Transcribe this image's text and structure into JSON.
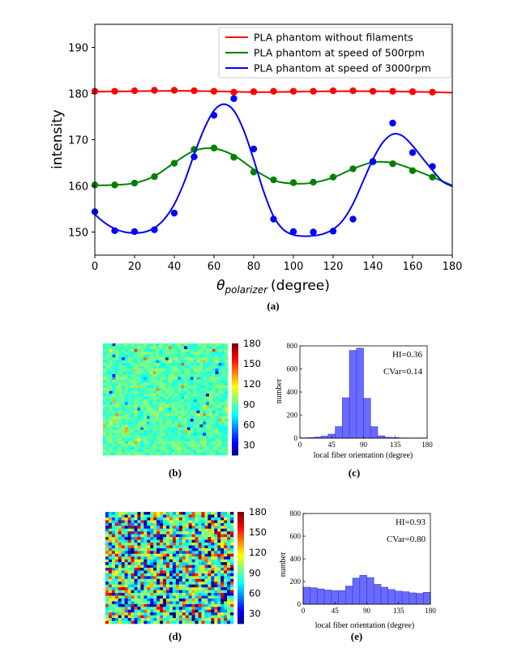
{
  "chart_data": [
    {
      "id": "a",
      "type": "scatter",
      "panel_label": "(a)",
      "title": "",
      "xlabel_symbol": "θ",
      "xlabel_sub": "polarizer",
      "xlabel_unit": "(degree)",
      "ylabel": "intensity",
      "xlim": [
        0,
        180
      ],
      "ylim": [
        145,
        195
      ],
      "xticks": [
        0,
        20,
        40,
        60,
        80,
        100,
        120,
        140,
        160,
        180
      ],
      "yticks": [
        150,
        160,
        170,
        180,
        190
      ],
      "legend_position": "top-right",
      "series": [
        {
          "name": "PLA phantom without filaments",
          "color": "#ff0000",
          "points_x": [
            0,
            10,
            20,
            30,
            40,
            50,
            60,
            70,
            80,
            90,
            100,
            110,
            120,
            130,
            140,
            150,
            160,
            170
          ],
          "points_y": [
            180.5,
            180.5,
            180.6,
            180.7,
            180.7,
            180.6,
            180.5,
            180.3,
            180.4,
            180.5,
            180.5,
            180.5,
            180.6,
            180.6,
            180.5,
            180.5,
            180.4,
            180.3
          ],
          "fit_x": [
            0,
            20,
            40,
            60,
            80,
            100,
            120,
            140,
            160,
            180
          ],
          "fit_y": [
            180.4,
            180.5,
            180.6,
            180.5,
            180.3,
            180.4,
            180.5,
            180.5,
            180.4,
            180.2
          ]
        },
        {
          "name": "PLA phantom at speed of 500rpm",
          "color": "#008000",
          "points_x": [
            0,
            10,
            20,
            30,
            40,
            50,
            60,
            70,
            80,
            90,
            100,
            110,
            120,
            130,
            140,
            150,
            160,
            170
          ],
          "points_y": [
            160.2,
            160.2,
            160.6,
            162.0,
            164.9,
            167.9,
            168.2,
            166.2,
            163.0,
            161.3,
            160.7,
            160.8,
            161.9,
            163.7,
            165.2,
            164.8,
            163.3,
            161.9
          ],
          "fit_x": [
            0,
            10,
            20,
            30,
            40,
            50,
            60,
            70,
            80,
            90,
            100,
            110,
            120,
            130,
            140,
            150,
            160,
            170,
            180
          ],
          "fit_y": [
            160.1,
            160.2,
            160.6,
            162.1,
            165.0,
            167.6,
            168.1,
            166.6,
            163.6,
            161.2,
            160.5,
            160.7,
            161.8,
            163.7,
            165.1,
            165.0,
            163.6,
            161.9,
            160.1
          ]
        },
        {
          "name": "PLA phantom at speed of 3000rpm",
          "color": "#0000ff",
          "points_x": [
            0,
            10,
            20,
            30,
            40,
            50,
            60,
            70,
            80,
            90,
            100,
            110,
            120,
            130,
            140,
            150,
            160,
            170
          ],
          "points_y": [
            154.4,
            150.3,
            150.1,
            150.5,
            154.1,
            166.3,
            175.3,
            178.9,
            168.0,
            152.8,
            150.1,
            150.0,
            150.2,
            152.8,
            165.3,
            173.6,
            167.2,
            164.2
          ],
          "fit_x": [
            0,
            5,
            10,
            15,
            20,
            25,
            30,
            35,
            40,
            45,
            50,
            55,
            60,
            65,
            70,
            75,
            80,
            85,
            90,
            95,
            100,
            105,
            110,
            115,
            120,
            125,
            130,
            135,
            140,
            145,
            150,
            155,
            160,
            165,
            170,
            175,
            180
          ],
          "fit_y": [
            153.8,
            152.0,
            150.7,
            150.0,
            149.8,
            150.0,
            150.9,
            152.8,
            156.0,
            160.8,
            166.8,
            172.3,
            176.3,
            177.7,
            176.3,
            172.0,
            165.7,
            158.8,
            153.4,
            150.5,
            149.4,
            149.1,
            149.2,
            149.6,
            150.6,
            152.6,
            156.1,
            160.9,
            165.7,
            169.4,
            171.2,
            170.8,
            168.7,
            166.0,
            163.4,
            161.0,
            159.9
          ]
        }
      ]
    },
    {
      "id": "b",
      "type": "heatmap",
      "panel_label": "(b)",
      "colorbar_ticks": [
        30,
        60,
        90,
        120,
        150,
        180
      ],
      "grid_size": 40,
      "base_angle": 90,
      "spread": 12,
      "seed": 7
    },
    {
      "id": "c",
      "type": "bar",
      "panel_label": "(c)",
      "xlabel": "local fiber orientation (degree)",
      "ylabel": "number",
      "xlim": [
        0,
        180
      ],
      "ylim": [
        0,
        800
      ],
      "xticks": [
        0,
        45,
        90,
        135,
        180
      ],
      "yticks": [
        0,
        200,
        400,
        600,
        800
      ],
      "bin_width": 10,
      "bins_start": [
        0,
        10,
        20,
        30,
        40,
        50,
        60,
        70,
        80,
        90,
        100,
        110,
        120,
        130,
        140,
        150,
        160,
        170
      ],
      "values": [
        3,
        5,
        10,
        18,
        35,
        100,
        350,
        760,
        780,
        345,
        100,
        20,
        8,
        5,
        3,
        2,
        2,
        2
      ],
      "stats": [
        "HI=0.36",
        "CVar=0.14"
      ]
    },
    {
      "id": "d",
      "type": "heatmap",
      "panel_label": "(d)",
      "colorbar_ticks": [
        30,
        60,
        90,
        120,
        150,
        180
      ],
      "grid_size": 40,
      "base_angle": 90,
      "spread": 90,
      "seed": 13
    },
    {
      "id": "e",
      "type": "bar",
      "panel_label": "(e)",
      "xlabel": "local fiber orientation (degree)",
      "ylabel": "number",
      "xlim": [
        0,
        180
      ],
      "ylim": [
        0,
        800
      ],
      "xticks": [
        0,
        45,
        90,
        135,
        180
      ],
      "yticks": [
        0,
        200,
        400,
        600,
        800
      ],
      "bin_width": 10,
      "bins_start": [
        0,
        10,
        20,
        30,
        40,
        50,
        60,
        70,
        80,
        90,
        100,
        110,
        120,
        130,
        140,
        150,
        160,
        170
      ],
      "values": [
        150,
        145,
        135,
        125,
        120,
        120,
        160,
        230,
        255,
        235,
        175,
        150,
        130,
        115,
        110,
        100,
        95,
        105
      ],
      "stats": [
        "HI=0.93",
        "CVar=0.80"
      ]
    }
  ]
}
